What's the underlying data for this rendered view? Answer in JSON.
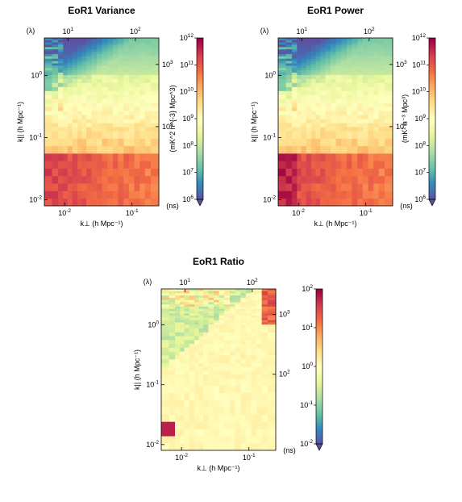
{
  "chart_data": [
    {
      "type": "heatmap",
      "title": "EoR1 Variance",
      "xlabel": "k⊥ (h Mpc⁻¹)",
      "ylabel": "k|| (h Mpc⁻¹)",
      "top_axis_label": "(λ)",
      "right_axis_label": "(ns)",
      "x_scale": "log",
      "y_scale": "log",
      "xlim": [
        0.005,
        0.25
      ],
      "ylim": [
        0.008,
        4.0
      ],
      "xticks": [
        {
          "v": 0.01,
          "label": "10",
          "exp": "-2"
        },
        {
          "v": 0.1,
          "label": "10",
          "exp": "-1"
        }
      ],
      "yticks": [
        {
          "v": 0.01,
          "label": "10",
          "exp": "-2"
        },
        {
          "v": 0.1,
          "label": "10",
          "exp": "-1"
        },
        {
          "v": 1,
          "label": "10",
          "exp": "0"
        }
      ],
      "top_ticks": [
        {
          "v": 10,
          "label": "10",
          "exp": "1"
        },
        {
          "v": 100,
          "label": "10",
          "exp": "2"
        }
      ],
      "right_ticks": [
        {
          "v": 100,
          "label": "10",
          "exp": "2"
        },
        {
          "v": 1000,
          "label": "10",
          "exp": "3"
        }
      ],
      "colorbar": {
        "scale": "log",
        "range": [
          1000000.0,
          1000000000000.0
        ],
        "label": "(mK^2 h^{-3} Mpc^3)",
        "ticks": [
          {
            "label": "10",
            "exp": "6"
          },
          {
            "label": "10",
            "exp": "7"
          },
          {
            "label": "10",
            "exp": "8"
          },
          {
            "label": "10",
            "exp": "9"
          },
          {
            "label": "10",
            "exp": "10"
          },
          {
            "label": "10",
            "exp": "11"
          },
          {
            "label": "10",
            "exp": "12"
          }
        ]
      },
      "colormap": "Spectral_r"
    },
    {
      "type": "heatmap",
      "title": "EoR1 Power",
      "xlabel": "k⊥ (h Mpc⁻¹)",
      "ylabel": "k|| (h Mpc⁻¹)",
      "top_axis_label": "(λ)",
      "right_axis_label": "(ns)",
      "x_scale": "log",
      "y_scale": "log",
      "xlim": [
        0.005,
        0.25
      ],
      "ylim": [
        0.008,
        4.0
      ],
      "xticks": [
        {
          "v": 0.01,
          "label": "10",
          "exp": "-2"
        },
        {
          "v": 0.1,
          "label": "10",
          "exp": "-1"
        }
      ],
      "yticks": [
        {
          "v": 0.01,
          "label": "10",
          "exp": "-2"
        },
        {
          "v": 0.1,
          "label": "10",
          "exp": "-1"
        },
        {
          "v": 1,
          "label": "10",
          "exp": "0"
        }
      ],
      "top_ticks": [
        {
          "v": 10,
          "label": "10",
          "exp": "1"
        },
        {
          "v": 100,
          "label": "10",
          "exp": "2"
        }
      ],
      "right_ticks": [
        {
          "v": 100,
          "label": "10",
          "exp": "2"
        },
        {
          "v": 1000,
          "label": "10",
          "exp": "3"
        }
      ],
      "colorbar": {
        "scale": "log",
        "range": [
          1000000.0,
          1000000000000.0
        ],
        "label": "(mK² h⁻³ Mpc³)",
        "ticks": [
          {
            "label": "10",
            "exp": "6"
          },
          {
            "label": "10",
            "exp": "7"
          },
          {
            "label": "10",
            "exp": "8"
          },
          {
            "label": "10",
            "exp": "9"
          },
          {
            "label": "10",
            "exp": "10"
          },
          {
            "label": "10",
            "exp": "11"
          },
          {
            "label": "10",
            "exp": "12"
          }
        ]
      },
      "colormap": "Spectral_r"
    },
    {
      "type": "heatmap",
      "title": "EoR1 Ratio",
      "xlabel": "k⊥ (h Mpc⁻¹)",
      "ylabel": "k|| (h Mpc⁻¹)",
      "top_axis_label": "(λ)",
      "right_axis_label": "(ns)",
      "x_scale": "log",
      "y_scale": "log",
      "xlim": [
        0.005,
        0.25
      ],
      "ylim": [
        0.008,
        4.0
      ],
      "xticks": [
        {
          "v": 0.01,
          "label": "10",
          "exp": "-2"
        },
        {
          "v": 0.1,
          "label": "10",
          "exp": "-1"
        }
      ],
      "yticks": [
        {
          "v": 0.01,
          "label": "10",
          "exp": "-2"
        },
        {
          "v": 0.1,
          "label": "10",
          "exp": "-1"
        },
        {
          "v": 1,
          "label": "10",
          "exp": "0"
        }
      ],
      "top_ticks": [
        {
          "v": 10,
          "label": "10",
          "exp": "1"
        },
        {
          "v": 100,
          "label": "10",
          "exp": "2"
        }
      ],
      "right_ticks": [
        {
          "v": 100,
          "label": "10",
          "exp": "2"
        },
        {
          "v": 1000,
          "label": "10",
          "exp": "3"
        }
      ],
      "colorbar": {
        "scale": "log",
        "range": [
          0.01,
          100
        ],
        "label": "",
        "ticks": [
          {
            "label": "10",
            "exp": "-2"
          },
          {
            "label": "10",
            "exp": "-1"
          },
          {
            "label": "10",
            "exp": "0"
          },
          {
            "label": "10",
            "exp": "1"
          },
          {
            "label": "10",
            "exp": "2"
          }
        ]
      },
      "colormap": "Spectral_r"
    }
  ]
}
